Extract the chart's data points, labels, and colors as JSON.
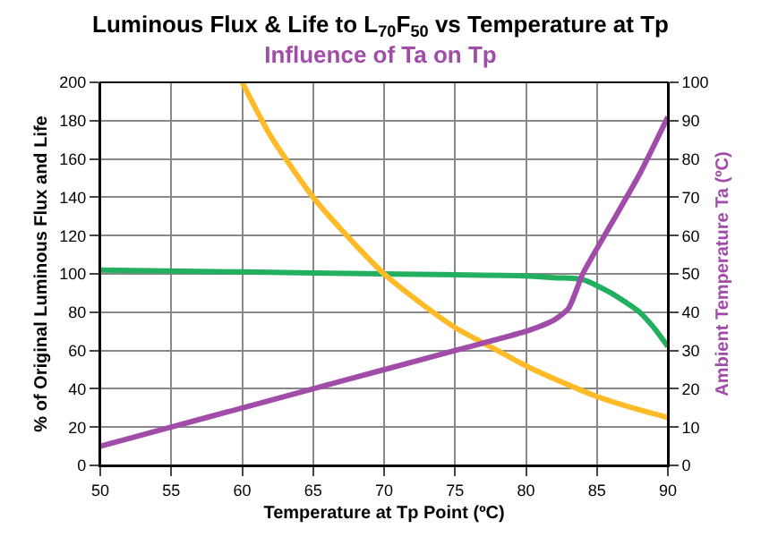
{
  "chart_data": {
    "type": "line",
    "title": "Luminous Flux & Life to L$_{70}$F$_{50}$ vs Temperature at Tp",
    "subtitle": "Influence of Ta on Tp",
    "xlabel": "Temperature at Tp Point (ºC)",
    "ylabel": "% of Original Luminous Flux and Life",
    "y2label": "Ambient Temperature Ta (ºC)",
    "series": [
      {
        "color": "#22b060",
        "x": [
          50,
          60,
          70,
          80,
          82,
          84,
          86,
          88,
          89,
          90
        ],
        "values": [
          102,
          101,
          100,
          99,
          98,
          97,
          90,
          80,
          72,
          62
        ]
      },
      {
        "color": "#ffba27",
        "x": [
          60,
          62,
          65,
          68,
          70,
          72,
          75,
          78,
          80,
          83,
          85,
          88,
          90
        ],
        "values": [
          200,
          172,
          140,
          115,
          100,
          88,
          72,
          60,
          52,
          42,
          36,
          29,
          25
        ]
      },
      {
        "color": "#a04ca8",
        "axis": "y2",
        "x": [
          50,
          55,
          60,
          65,
          70,
          75,
          80,
          82,
          83,
          84,
          86,
          88,
          90
        ],
        "values": [
          5,
          10,
          15,
          20,
          25,
          30,
          35,
          38,
          41,
          50,
          63,
          76,
          91
        ]
      }
    ],
    "xlim": [
      50,
      90
    ],
    "xticks": [
      50,
      55,
      60,
      65,
      70,
      75,
      80,
      85,
      90
    ],
    "ylim": [
      0,
      200
    ],
    "yticks": [
      0,
      20,
      40,
      60,
      80,
      100,
      120,
      140,
      160,
      180,
      200
    ],
    "y2lim": [
      0,
      100
    ],
    "y2ticks": [
      0,
      10,
      20,
      30,
      40,
      50,
      60,
      70,
      80,
      90,
      100
    ],
    "grid": true,
    "marker": "none",
    "line_style": "solid"
  }
}
